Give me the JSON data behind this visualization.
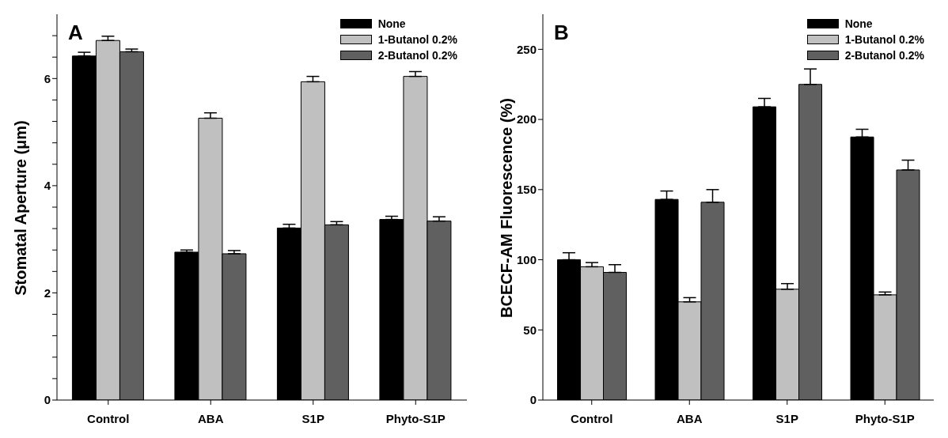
{
  "chart_data": [
    {
      "type": "bar",
      "title": "A",
      "ylabel": "Stomatal Aperture (μm)",
      "categories": [
        "Control",
        "ABA",
        "S1P",
        "Phyto-S1P"
      ],
      "series": [
        {
          "name": "None",
          "color": "#000000",
          "values": [
            6.42,
            2.76,
            3.21,
            3.37
          ],
          "errors": [
            [
              6.42,
              6.49
            ],
            [
              2.76,
              2.8
            ],
            [
              3.21,
              3.28
            ],
            [
              3.37,
              3.43
            ]
          ]
        },
        {
          "name": "1-Butanol 0.2%",
          "color": "#c0c0c0",
          "values": [
            6.71,
            5.26,
            5.94,
            6.04
          ],
          "errors": [
            [
              6.71,
              6.79
            ],
            [
              5.26,
              5.36
            ],
            [
              5.94,
              6.04
            ],
            [
              6.04,
              6.13
            ]
          ]
        },
        {
          "name": "2-Butanol 0.2%",
          "color": "#606060",
          "values": [
            6.5,
            2.73,
            3.27,
            3.34
          ],
          "errors": [
            [
              6.5,
              6.55
            ],
            [
              2.73,
              2.79
            ],
            [
              3.27,
              3.33
            ],
            [
              3.34,
              3.42
            ]
          ]
        }
      ],
      "ylim": [
        0,
        7.2
      ],
      "yticks": [
        0,
        {
          "value": 0.4,
          "label": null
        },
        {
          "value": 0.8,
          "label": null
        },
        {
          "value": 1.2,
          "label": null
        },
        {
          "value": 1.6,
          "label": null
        },
        2,
        {
          "value": 2.4,
          "label": null
        },
        {
          "value": 2.8,
          "label": null
        },
        {
          "value": 3.2,
          "label": null
        },
        {
          "value": 3.6,
          "label": null
        },
        4,
        {
          "value": 4.4,
          "label": null
        },
        {
          "value": 4.8,
          "label": null
        },
        {
          "value": 5.2,
          "label": null
        },
        {
          "value": 5.6,
          "label": null
        },
        6,
        {
          "value": 6.4,
          "label": null
        },
        {
          "value": 6.8,
          "label": null
        }
      ],
      "grid": false,
      "legend": "top right"
    },
    {
      "type": "bar",
      "title": "B",
      "ylabel": "BCECF-AM Fluorescence (%)",
      "categories": [
        "Control",
        "ABA",
        "S1P",
        "Phyto-S1P"
      ],
      "series": [
        {
          "name": "None",
          "color": "#000000",
          "values": [
            100,
            143,
            209,
            187.5
          ],
          "errors": [
            [
              100,
              105
            ],
            [
              143,
              149
            ],
            [
              209,
              215
            ],
            [
              187.5,
              193
            ]
          ]
        },
        {
          "name": "1-Butanol 0.2%",
          "color": "#c0c0c0",
          "values": [
            95,
            70,
            79,
            75
          ],
          "errors": [
            [
              95,
              98
            ],
            [
              70,
              73
            ],
            [
              79,
              83
            ],
            [
              75,
              77
            ]
          ]
        },
        {
          "name": "2-Butanol 0.2%",
          "color": "#606060",
          "values": [
            91,
            141,
            225,
            164
          ],
          "errors": [
            [
              91,
              96.5
            ],
            [
              141,
              150
            ],
            [
              225,
              236
            ],
            [
              164,
              171
            ]
          ]
        }
      ],
      "ylim": [
        0,
        275
      ],
      "yticks": [
        0,
        50,
        100,
        150,
        200,
        250
      ],
      "grid": false,
      "legend": "top right"
    }
  ]
}
